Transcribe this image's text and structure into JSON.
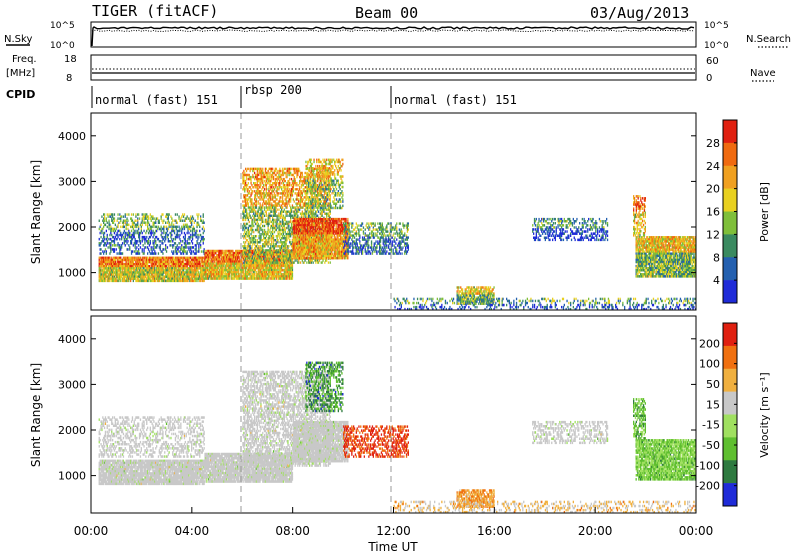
{
  "header": {
    "station": "TIGER (fitACF)",
    "beam": "Beam 00",
    "date": "03/Aug/2013"
  },
  "top_panels": {
    "nsky_label": "N.Sky",
    "nsky_ticks": [
      "10^5",
      "10^0"
    ],
    "nsearch_label": "N.Search",
    "nsearch_ticks": [
      "10^5",
      "10^0"
    ],
    "freq_label_line1": "Freq.",
    "freq_label_line2": "[MHz]",
    "freq_ticks": [
      "18",
      "8"
    ],
    "nave_label": "Nave",
    "nave_ticks": [
      "60",
      "0"
    ],
    "cpid_label": "CPID",
    "cpid_segments": [
      {
        "label": "normal (fast) 151",
        "start": 0,
        "end": 6
      },
      {
        "label": "rbsp 200",
        "start": 6,
        "end": 12
      },
      {
        "label": "normal (fast) 151",
        "start": 12,
        "end": 24
      }
    ]
  },
  "chart_data": [
    {
      "type": "heatmap",
      "title": "Power",
      "ylabel": "Slant Range [km]",
      "y_ticks": [
        "1000",
        "2000",
        "3000",
        "4000"
      ],
      "ylim": [
        180,
        4500
      ],
      "colorbar_label": "Power [dB]",
      "colorbar_ticks": [
        "4",
        "8",
        "12",
        "16",
        "20",
        "24",
        "28"
      ],
      "colorbar_colors": [
        "#1f2bd8",
        "#2460b0",
        "#3a8a60",
        "#7fbf3a",
        "#e8d020",
        "#f0a020",
        "#f06a10",
        "#e02010"
      ]
    },
    {
      "type": "heatmap",
      "title": "Velocity",
      "ylabel": "Slant Range [km]",
      "y_ticks": [
        "1000",
        "2000",
        "3000",
        "4000"
      ],
      "ylim": [
        180,
        4500
      ],
      "xlabel": "Time UT",
      "x_ticks": [
        "00:00",
        "04:00",
        "08:00",
        "12:00",
        "16:00",
        "20:00",
        "00:00"
      ],
      "xlim": [
        0,
        24
      ],
      "colorbar_label": "Velocity [m s⁻¹]",
      "colorbar_ticks": [
        "200",
        "100",
        "50",
        "15",
        "-15",
        "-50",
        "-100",
        "-200"
      ],
      "colorbar_colors": [
        "#1f2bd8",
        "#2e7a40",
        "#5fbf30",
        "#a0e060",
        "#c8c8c8",
        "#f0b040",
        "#f07010",
        "#e02010"
      ],
      "ground_scatter_color": "#c8c8c8"
    }
  ],
  "echo_regions": [
    {
      "t0": 0.3,
      "t1": 4.5,
      "r0": 800,
      "r1": 1350,
      "power": 0.65,
      "velocity": 0.0,
      "density": 0.9
    },
    {
      "t0": 0.3,
      "t1": 4.5,
      "r0": 1400,
      "r1": 2300,
      "power": 0.25,
      "velocity": 0.0,
      "density": 0.35
    },
    {
      "t0": 4.5,
      "t1": 8.0,
      "r0": 850,
      "r1": 1500,
      "power": 0.7,
      "velocity": 0.0,
      "density": 0.9
    },
    {
      "t0": 6.0,
      "t1": 9.5,
      "r0": 1200,
      "r1": 3300,
      "power": 0.55,
      "velocity": 0.0,
      "density": 0.55
    },
    {
      "t0": 8.0,
      "t1": 10.2,
      "r0": 1300,
      "r1": 2200,
      "power": 0.8,
      "velocity": 0.0,
      "density": 0.85
    },
    {
      "t0": 8.5,
      "t1": 10.0,
      "r0": 2400,
      "r1": 3500,
      "power": 0.5,
      "velocity": 0.6,
      "density": 0.4
    },
    {
      "t0": 10.0,
      "t1": 12.6,
      "r0": 1400,
      "r1": 2100,
      "power": 0.25,
      "velocity": -0.9,
      "density": 0.45
    },
    {
      "t0": 14.5,
      "t1": 16.0,
      "r0": 300,
      "r1": 700,
      "power": 0.45,
      "velocity": -0.55,
      "density": 0.7
    },
    {
      "t0": 12.0,
      "t1": 24.0,
      "r0": 180,
      "r1": 450,
      "power": 0.2,
      "velocity": -0.3,
      "density": 0.25
    },
    {
      "t0": 17.5,
      "t1": 20.5,
      "r0": 1700,
      "r1": 2200,
      "power": 0.15,
      "velocity": 0.0,
      "density": 0.4
    },
    {
      "t0": 21.6,
      "t1": 24.0,
      "r0": 900,
      "r1": 1800,
      "power": 0.5,
      "velocity": 0.3,
      "density": 0.85
    },
    {
      "t0": 21.5,
      "t1": 22.0,
      "r0": 1800,
      "r1": 2700,
      "power": 0.7,
      "velocity": 0.4,
      "density": 0.5
    }
  ]
}
